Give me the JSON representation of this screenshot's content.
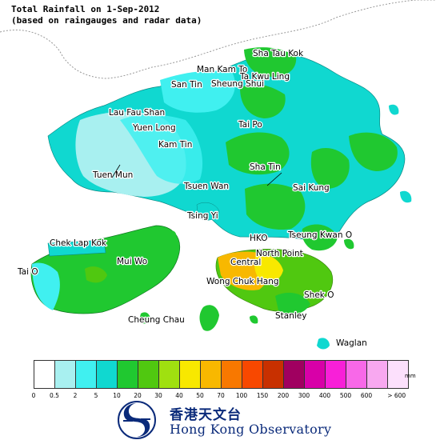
{
  "title_line1": "Total Rainfall on 1-Sep-2012",
  "title_line2": "(based on raingauges and radar data)",
  "places": [
    {
      "name": "Sha Tau Kok"
    },
    {
      "name": "Man Kam To"
    },
    {
      "name": "Ta Kwu Ling"
    },
    {
      "name": "San Tin"
    },
    {
      "name": "Sheung Shui"
    },
    {
      "name": "Lau Fau Shan"
    },
    {
      "name": "Yuen Long"
    },
    {
      "name": "Tai Po"
    },
    {
      "name": "Kam Tin"
    },
    {
      "name": "Sha Tin"
    },
    {
      "name": "Tuen Mun"
    },
    {
      "name": "Tsuen Wan"
    },
    {
      "name": "Sai Kung"
    },
    {
      "name": "Tsing Yi"
    },
    {
      "name": "Chek Lap Kok"
    },
    {
      "name": "HKO"
    },
    {
      "name": "Tseung Kwan O"
    },
    {
      "name": "North Point"
    },
    {
      "name": "Mui Wo"
    },
    {
      "name": "Central"
    },
    {
      "name": "Tai O"
    },
    {
      "name": "Wong Chuk Hang"
    },
    {
      "name": "Shek O"
    },
    {
      "name": "Stanley"
    },
    {
      "name": "Cheung Chau"
    },
    {
      "name": "Waglan"
    }
  ],
  "legend": {
    "unit": "mm",
    "colors": [
      "#ffffff",
      "#a8f0f0",
      "#40f0f0",
      "#10d8d0",
      "#20c830",
      "#50c810",
      "#a0e010",
      "#f8e800",
      "#f8b800",
      "#f87800",
      "#f84800",
      "#c83000",
      "#a00060",
      "#d800a8",
      "#f820d8",
      "#f868e8",
      "#f8a8f0",
      "#fce0fc"
    ],
    "ticks": [
      "0",
      "0.5",
      "2",
      "5",
      "10",
      "20",
      "30",
      "40",
      "50",
      "70",
      "100",
      "150",
      "200",
      "300",
      "400",
      "500",
      "600",
      "> 600"
    ]
  },
  "logo": {
    "icon": "hko-swirl-logo-icon",
    "name_zh": "香港天文台",
    "name_en": "Hong Kong Observatory"
  }
}
